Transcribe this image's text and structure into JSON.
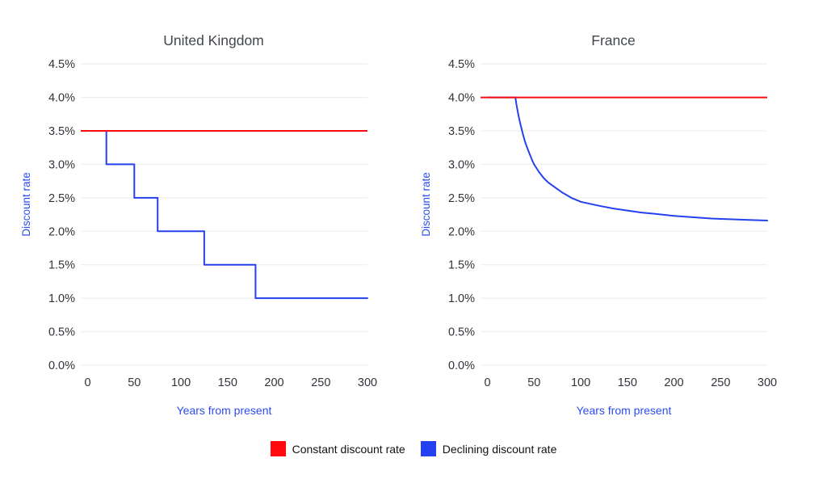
{
  "page": {
    "background": "#ffffff"
  },
  "colors": {
    "red": "#ff0a0e",
    "blue": "#2540f0",
    "axis_label": "#2c4cf2",
    "title_text": "#42474e",
    "tick_text": "#30343a",
    "grid": "#ebebeb",
    "legend_text": "#121212"
  },
  "chart_data": [
    {
      "type": "line",
      "title": "United Kingdom",
      "xlabel": "Years from present",
      "ylabel": "Discount rate",
      "xlim": [
        0,
        300
      ],
      "ylim": [
        0,
        4.6
      ],
      "grid": "horizontal",
      "xticks": {
        "values": [
          0,
          50,
          100,
          150,
          200,
          250,
          300
        ],
        "labels": [
          "0",
          "50",
          "100",
          "150",
          "200",
          "250",
          "300"
        ]
      },
      "yticks": {
        "values": [
          0,
          0.5,
          1.0,
          1.5,
          2.0,
          2.5,
          3.0,
          3.5,
          4.0,
          4.5
        ],
        "labels": [
          "0.0%",
          "0.5%",
          "1.0%",
          "1.5%",
          "2.0%",
          "2.5%",
          "3.0%",
          "3.5%",
          "4.0%",
          "4.5%"
        ]
      },
      "series": [
        {
          "name": "Constant discount rate",
          "style": "constant",
          "color": "#ff0a0e",
          "value": 3.5
        },
        {
          "name": "Declining discount rate",
          "style": "step",
          "color": "#2540f0",
          "points": [
            [
              0,
              3.5
            ],
            [
              20,
              3.5
            ],
            [
              20,
              3.0
            ],
            [
              50,
              3.0
            ],
            [
              50,
              2.5
            ],
            [
              75,
              2.5
            ],
            [
              75,
              2.0
            ],
            [
              125,
              2.0
            ],
            [
              125,
              1.5
            ],
            [
              180,
              1.5
            ],
            [
              180,
              1.0
            ],
            [
              300,
              1.0
            ]
          ]
        }
      ]
    },
    {
      "type": "line",
      "title": "France",
      "xlabel": "Years from present",
      "ylabel": "Discount rate",
      "xlim": [
        0,
        300
      ],
      "ylim": [
        0,
        4.6
      ],
      "grid": "horizontal",
      "xticks": {
        "values": [
          0,
          50,
          100,
          150,
          200,
          250,
          300
        ],
        "labels": [
          "0",
          "50",
          "100",
          "150",
          "200",
          "250",
          "300"
        ]
      },
      "yticks": {
        "values": [
          0,
          0.5,
          1.0,
          1.5,
          2.0,
          2.5,
          3.0,
          3.5,
          4.0,
          4.5
        ],
        "labels": [
          "0.0%",
          "0.5%",
          "1.0%",
          "1.5%",
          "2.0%",
          "2.5%",
          "3.0%",
          "3.5%",
          "4.0%",
          "4.5%"
        ]
      },
      "series": [
        {
          "name": "Constant discount rate",
          "style": "constant",
          "color": "#ff0a0e",
          "value": 4.0
        },
        {
          "name": "Declining discount rate",
          "style": "curve",
          "color": "#2540f0",
          "points": [
            [
              0,
              4.0
            ],
            [
              30,
              4.0
            ],
            [
              30.5,
              3.95
            ],
            [
              31,
              3.9
            ],
            [
              32,
              3.82
            ],
            [
              33,
              3.75
            ],
            [
              34,
              3.68
            ],
            [
              35,
              3.62
            ],
            [
              36,
              3.56
            ],
            [
              38,
              3.45
            ],
            [
              40,
              3.35
            ],
            [
              42,
              3.27
            ],
            [
              45,
              3.16
            ],
            [
              48,
              3.06
            ],
            [
              50,
              3.0
            ],
            [
              55,
              2.89
            ],
            [
              60,
              2.8
            ],
            [
              65,
              2.73
            ],
            [
              70,
              2.68
            ],
            [
              75,
              2.63
            ],
            [
              80,
              2.58
            ],
            [
              85,
              2.54
            ],
            [
              90,
              2.5
            ],
            [
              95,
              2.47
            ],
            [
              100,
              2.44
            ],
            [
              110,
              2.41
            ],
            [
              120,
              2.38
            ],
            [
              135,
              2.34
            ],
            [
              150,
              2.31
            ],
            [
              165,
              2.28
            ],
            [
              180,
              2.26
            ],
            [
              200,
              2.23
            ],
            [
              220,
              2.21
            ],
            [
              240,
              2.19
            ],
            [
              260,
              2.18
            ],
            [
              280,
              2.17
            ],
            [
              300,
              2.16
            ]
          ]
        }
      ]
    }
  ],
  "legend": {
    "position": "bottom-center",
    "items": [
      {
        "label": "Constant discount rate",
        "color": "#ff0a0e"
      },
      {
        "label": "Declining discount rate",
        "color": "#2540f0"
      }
    ]
  }
}
